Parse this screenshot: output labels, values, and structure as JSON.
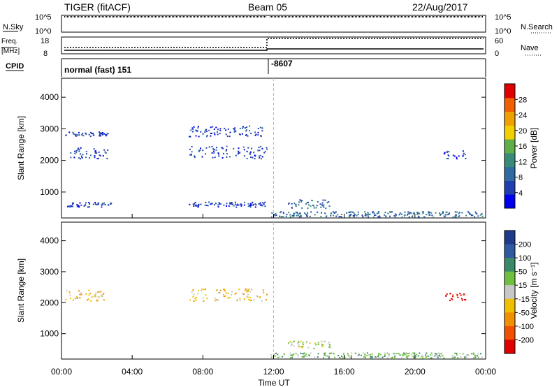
{
  "header": {
    "radar": "TIGER (fitACF)",
    "beam": "Beam 05",
    "date": "22/Aug/2017"
  },
  "strip_labels": {
    "nsky": "N.Sky",
    "nsearch": "N.Search",
    "freq_top": "Freq.",
    "freq_unit": "[MHz]",
    "nave": "Nave",
    "cpid": "CPID"
  },
  "strip_ticks": {
    "nsky_left_top": "10^5",
    "nsky_left_bottom": "10^0",
    "nsky_right_top": "10^5",
    "nsky_right_bottom": "10^0",
    "freq_left_top": "18",
    "freq_left_bottom": "8",
    "nave_right_top": "60",
    "nave_right_bottom": "0"
  },
  "cpid_values": {
    "first": "normal (fast) 151",
    "second": "-8607"
  },
  "colors": {
    "power": [
      "#0000ee",
      "#1f3fb0",
      "#2f6aa0",
      "#3a8a7a",
      "#5fae4a",
      "#f0d000",
      "#f0a000",
      "#f06000",
      "#e00000"
    ],
    "velocity": [
      "#e00000",
      "#f05000",
      "#f09000",
      "#f0c000",
      "#c8c8c8",
      "#70c040",
      "#3a8a6a",
      "#2f5aa0",
      "#1f3a8a"
    ]
  },
  "chart_data": [
    {
      "type": "heatmap",
      "quantity": "power",
      "xlabel": "",
      "ylabel": "Slant Range [km]",
      "xlim": [
        "00:00",
        "24:00"
      ],
      "ylim": [
        180,
        4600
      ],
      "y_ticks": [
        1000,
        2000,
        3000,
        4000
      ],
      "colorbar": {
        "label": "Power [dB]",
        "ticks": [
          4,
          8,
          12,
          16,
          20,
          24,
          28
        ]
      },
      "bands": [
        {
          "t0": 0.2,
          "t1": 2.6,
          "r0": 2750,
          "r1": 2900,
          "level": 1
        },
        {
          "t0": 0.2,
          "t1": 2.6,
          "r0": 2050,
          "r1": 2400,
          "level": 1
        },
        {
          "t0": 0.3,
          "t1": 2.8,
          "r0": 520,
          "r1": 680,
          "level": 1
        },
        {
          "t0": 7.2,
          "t1": 11.6,
          "r0": 2050,
          "r1": 2450,
          "level": 1
        },
        {
          "t0": 7.2,
          "t1": 11.6,
          "r0": 2750,
          "r1": 3100,
          "level": 1
        },
        {
          "t0": 7.2,
          "t1": 11.6,
          "r0": 520,
          "r1": 680,
          "level": 1
        },
        {
          "t0": 12.8,
          "t1": 15.2,
          "r0": 480,
          "r1": 760,
          "level": 2
        },
        {
          "t0": 21.6,
          "t1": 22.9,
          "r0": 2050,
          "r1": 2300,
          "level": 1
        },
        {
          "t0": 11.8,
          "t1": 23.8,
          "r0": 200,
          "r1": 380,
          "level": 2
        }
      ]
    },
    {
      "type": "heatmap",
      "quantity": "velocity",
      "xlabel": "Time UT",
      "ylabel": "Slant Range [km]",
      "xlim": [
        "00:00",
        "24:00"
      ],
      "x_ticks": [
        "00:00",
        "04:00",
        "08:00",
        "12:00",
        "16:00",
        "20:00",
        "00:00"
      ],
      "ylim": [
        180,
        4600
      ],
      "y_ticks": [
        1000,
        2000,
        3000,
        4000
      ],
      "colorbar": {
        "label": "Velocity [m s⁻¹]",
        "ticks": [
          "200",
          "100",
          "50",
          "15",
          "-15",
          "-50",
          "-100",
          "-200"
        ]
      },
      "bands": [
        {
          "t0": 0.2,
          "t1": 2.6,
          "r0": 2050,
          "r1": 2400,
          "level": 3
        },
        {
          "t0": 7.2,
          "t1": 11.6,
          "r0": 2050,
          "r1": 2450,
          "level": 3
        },
        {
          "t0": 12.8,
          "t1": 15.2,
          "r0": 520,
          "r1": 760,
          "level": 4
        },
        {
          "t0": 21.6,
          "t1": 22.9,
          "r0": 2050,
          "r1": 2300,
          "level": 0
        },
        {
          "t0": 11.8,
          "t1": 23.8,
          "r0": 200,
          "r1": 380,
          "level": 5
        }
      ]
    }
  ]
}
